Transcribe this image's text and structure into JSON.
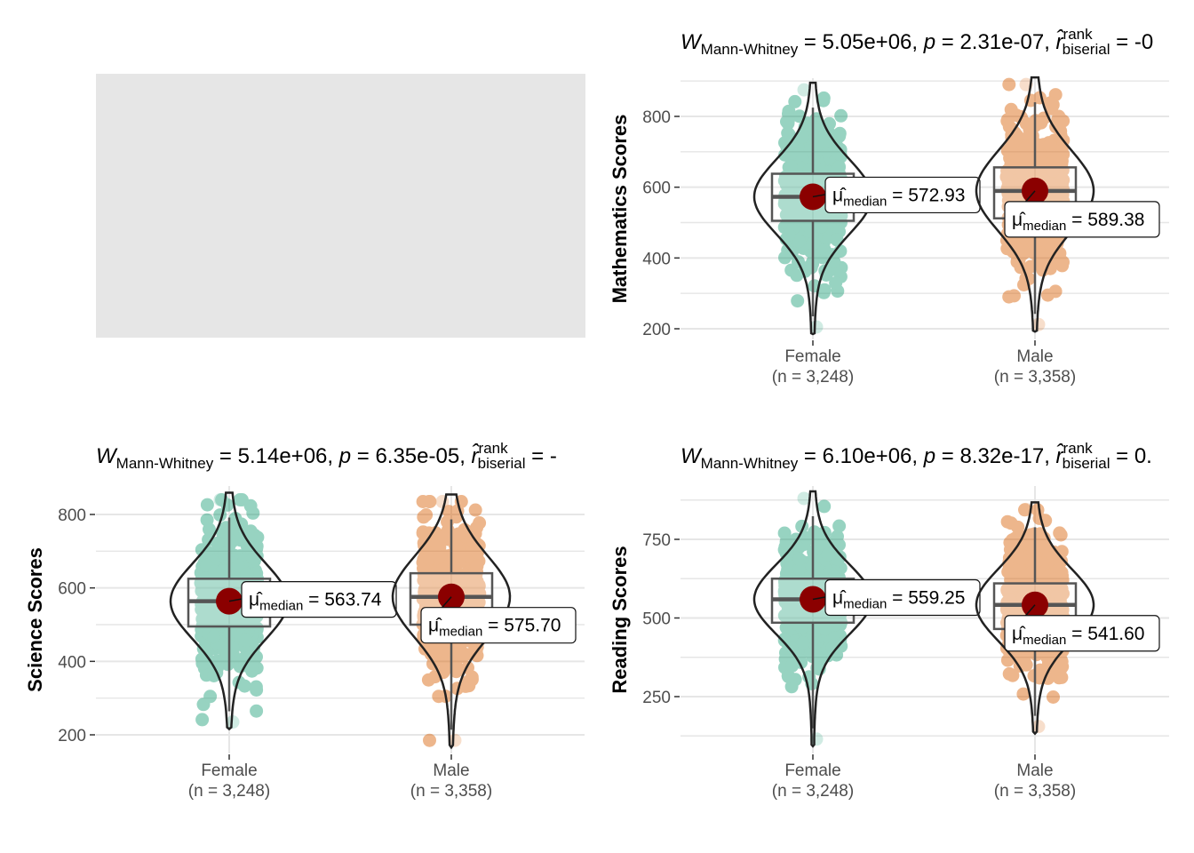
{
  "placeholder_panel": {
    "fill": "#e6e6e6"
  },
  "colors": {
    "female_fill": "#1b9e77",
    "male_fill": "#d95f02",
    "median_point": "#8b0000",
    "grid": "#e6e6e6",
    "outline": "#222222",
    "box_stroke": "#555555"
  },
  "chart_data": [
    {
      "id": "math",
      "type": "violin",
      "ylabel": "Mathematics Scores",
      "ylim": [
        185,
        915
      ],
      "yticks": [
        200,
        400,
        600,
        800
      ],
      "subtitle": {
        "stat": "W",
        "stat_sub": "Mann-Whitney",
        "stat_val": " = 5.05e+06, ",
        "p_label": "p",
        "p_val": " = 2.31e-07, ",
        "r_label": "r̂",
        "r_sup": "rank",
        "r_sub": "biserial",
        "r_val": " = -0"
      },
      "groups": [
        {
          "name": "Female",
          "n_label": "(n = 3,248)",
          "median": 572.93,
          "median_text": "572.93",
          "q1": 505,
          "q3": 638,
          "min": 205,
          "max": 875,
          "mu": "μ̂",
          "mu_sub": "median"
        },
        {
          "name": "Male",
          "n_label": "(n = 3,358)",
          "median": 589.38,
          "median_text": "589.38",
          "q1": 512,
          "q3": 656,
          "min": 212,
          "max": 890,
          "mu": "μ̂",
          "mu_sub": "median"
        }
      ]
    },
    {
      "id": "science",
      "type": "violin",
      "ylabel": "Science Scores",
      "ylim": [
        165,
        880
      ],
      "yticks": [
        200,
        400,
        600,
        800
      ],
      "subtitle": {
        "stat": "W",
        "stat_sub": "Mann-Whitney",
        "stat_val": " = 5.14e+06, ",
        "p_label": "p",
        "p_val": " = 6.35e-05, ",
        "r_label": "r̂",
        "r_sup": "rank",
        "r_sub": "biserial",
        "r_val": " = -"
      },
      "groups": [
        {
          "name": "Female",
          "n_label": "(n = 3,248)",
          "median": 563.74,
          "median_text": "563.74",
          "q1": 495,
          "q3": 625,
          "min": 235,
          "max": 840,
          "mu": "μ̂",
          "mu_sub": "median"
        },
        {
          "name": "Male",
          "n_label": "(n = 3,358)",
          "median": 575.7,
          "median_text": "575.70",
          "q1": 500,
          "q3": 640,
          "min": 185,
          "max": 835,
          "mu": "μ̂",
          "mu_sub": "median"
        }
      ]
    },
    {
      "id": "reading",
      "type": "violin",
      "ylabel": "Reading Scores",
      "ylim": [
        100,
        880
      ],
      "yticks": [
        250,
        500,
        750
      ],
      "subtitle": {
        "stat": "W",
        "stat_sub": "Mann-Whitney",
        "stat_val": " = 6.10e+06, ",
        "p_label": "p",
        "p_val": " = 8.32e-17, ",
        "r_label": "r̂",
        "r_sup": "rank",
        "r_sub": "biserial",
        "r_val": " = 0."
      },
      "groups": [
        {
          "name": "Female",
          "n_label": "(n = 3,248)",
          "median": 559.25,
          "median_text": "559.25",
          "q1": 485,
          "q3": 625,
          "min": 115,
          "max": 880,
          "mu": "μ̂",
          "mu_sub": "median"
        },
        {
          "name": "Male",
          "n_label": "(n = 3,358)",
          "median": 541.6,
          "median_text": "541.60",
          "q1": 465,
          "q3": 610,
          "min": 155,
          "max": 845,
          "mu": "μ̂",
          "mu_sub": "median"
        }
      ]
    }
  ]
}
